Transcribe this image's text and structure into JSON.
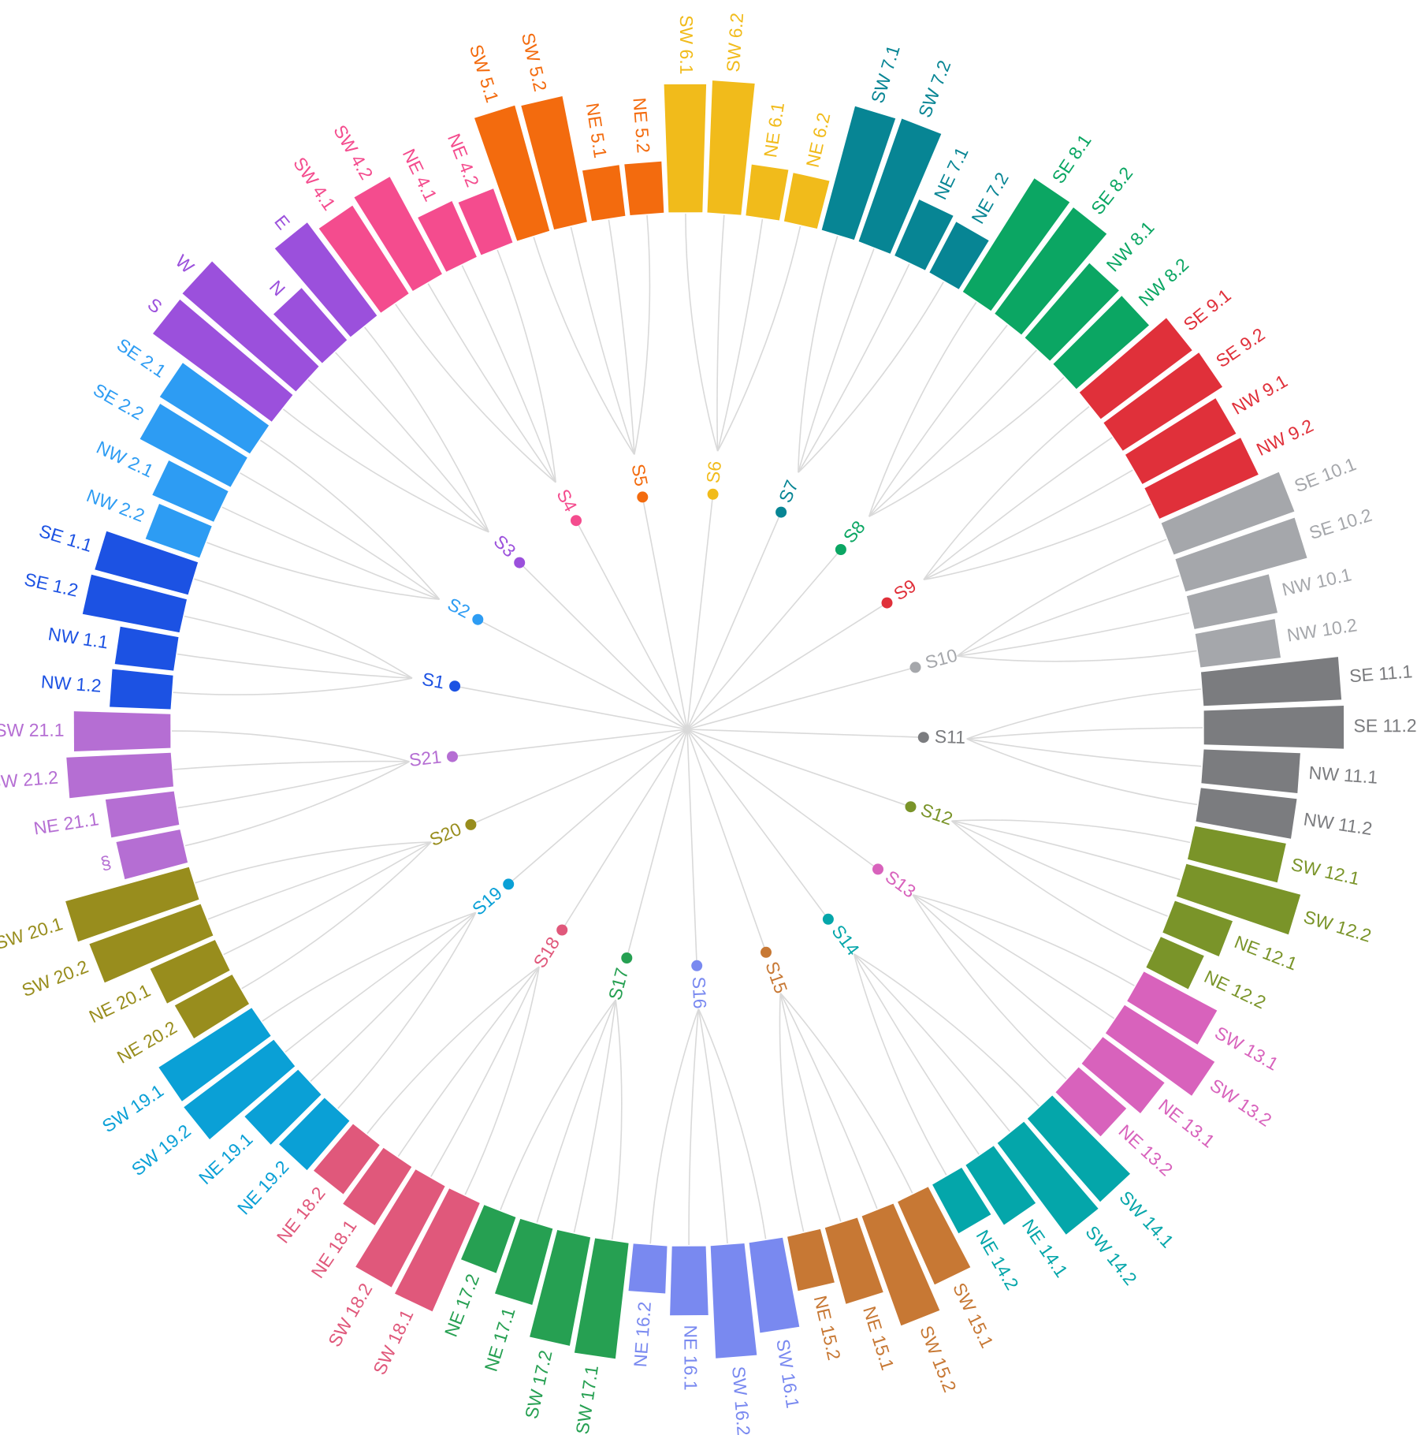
{
  "chart_data": {
    "type": "radial-bar-dendrogram",
    "title": "",
    "groups": [
      {
        "name": "S1",
        "color": "#1c52e3",
        "bars": [
          {
            "label": "NW 1.2",
            "value": 0.62
          },
          {
            "label": "NW 1.1",
            "value": 0.6
          },
          {
            "label": "SE 1.2",
            "value": 1.0
          },
          {
            "label": "SE 1.1",
            "value": 0.98
          }
        ]
      },
      {
        "name": "S2",
        "color": "#2d9cf3",
        "bars": [
          {
            "label": "NW 2.2",
            "value": 0.58
          },
          {
            "label": "NW 2.1",
            "value": 0.68
          },
          {
            "label": "SE 2.2",
            "value": 1.04
          },
          {
            "label": "SE 2.1",
            "value": 1.08
          }
        ]
      },
      {
        "name": "S3",
        "color": "#9b50dc",
        "bars": [
          {
            "label": "S",
            "value": 1.5
          },
          {
            "label": "W",
            "value": 1.52
          },
          {
            "label": "N",
            "value": 0.7
          },
          {
            "label": "E",
            "value": 1.18
          }
        ]
      },
      {
        "name": "S4",
        "color": "#f44c8e",
        "bars": [
          {
            "label": "SW 4.1",
            "value": 1.06
          },
          {
            "label": "SW 4.2",
            "value": 1.12
          },
          {
            "label": "NE 4.1",
            "value": 0.62
          },
          {
            "label": "NE 4.2",
            "value": 0.58
          }
        ]
      },
      {
        "name": "S5",
        "color": "#f36b0e",
        "bars": [
          {
            "label": "SW 5.1",
            "value": 1.32
          },
          {
            "label": "SW 5.2",
            "value": 1.3
          },
          {
            "label": "NE 5.1",
            "value": 0.52
          },
          {
            "label": "NE 5.2",
            "value": 0.52
          }
        ]
      },
      {
        "name": "S6",
        "color": "#f1bb1b",
        "bars": [
          {
            "label": "SW 6.1",
            "value": 1.3
          },
          {
            "label": "SW 6.2",
            "value": 1.34
          },
          {
            "label": "NE 6.1",
            "value": 0.52
          },
          {
            "label": "NE 6.2",
            "value": 0.5
          }
        ]
      },
      {
        "name": "S7",
        "color": "#078594",
        "bars": [
          {
            "label": "SW 7.1",
            "value": 1.3
          },
          {
            "label": "SW 7.2",
            "value": 1.32
          },
          {
            "label": "NE 7.1",
            "value": 0.62
          },
          {
            "label": "NE 7.2",
            "value": 0.58
          }
        ]
      },
      {
        "name": "S8",
        "color": "#0ba663",
        "bars": [
          {
            "label": "SE 8.1",
            "value": 1.36
          },
          {
            "label": "SE 8.2",
            "value": 1.34
          },
          {
            "label": "NW 8.1",
            "value": 1.0
          },
          {
            "label": "NW 8.2",
            "value": 0.98
          }
        ]
      },
      {
        "name": "S9",
        "color": "#e0303a",
        "bars": [
          {
            "label": "SE 9.1",
            "value": 1.16
          },
          {
            "label": "SE 9.2",
            "value": 1.2
          },
          {
            "label": "NW 9.1",
            "value": 1.08
          },
          {
            "label": "NW 9.2",
            "value": 1.1
          }
        ]
      },
      {
        "name": "S10",
        "color": "#a5a7ab",
        "bars": [
          {
            "label": "SE 10.1",
            "value": 1.3
          },
          {
            "label": "SE 10.2",
            "value": 1.28
          },
          {
            "label": "NW 10.1",
            "value": 0.86
          },
          {
            "label": "NW 10.2",
            "value": 0.82
          }
        ]
      },
      {
        "name": "S11",
        "color": "#7b7c7f",
        "bars": [
          {
            "label": "SE 11.1",
            "value": 1.4
          },
          {
            "label": "SE 11.2",
            "value": 1.42
          },
          {
            "label": "NW 11.1",
            "value": 0.98
          },
          {
            "label": "NW 11.2",
            "value": 0.98
          }
        ]
      },
      {
        "name": "S12",
        "color": "#7a9429",
        "bars": [
          {
            "label": "SW 12.1",
            "value": 0.94
          },
          {
            "label": "SW 12.2",
            "value": 1.2
          },
          {
            "label": "NE 12.1",
            "value": 0.62
          },
          {
            "label": "NE 12.2",
            "value": 0.48
          }
        ]
      },
      {
        "name": "S13",
        "color": "#d862bc",
        "bars": [
          {
            "label": "SW 13.1",
            "value": 0.84
          },
          {
            "label": "SW 13.2",
            "value": 1.08
          },
          {
            "label": "NE 13.1",
            "value": 0.78
          },
          {
            "label": "NE 13.2",
            "value": 0.64
          }
        ]
      },
      {
        "name": "S14",
        "color": "#04a6aa",
        "bars": [
          {
            "label": "SW 14.1",
            "value": 1.12
          },
          {
            "label": "SW 14.2",
            "value": 1.16
          },
          {
            "label": "NE 14.1",
            "value": 0.72
          },
          {
            "label": "NE 14.2",
            "value": 0.56
          }
        ]
      },
      {
        "name": "S15",
        "color": "#c77834",
        "bars": [
          {
            "label": "SW 15.1",
            "value": 0.92
          },
          {
            "label": "SW 15.2",
            "value": 1.18
          },
          {
            "label": "NE 15.1",
            "value": 0.8
          },
          {
            "label": "NE 15.2",
            "value": 0.56
          }
        ]
      },
      {
        "name": "S16",
        "color": "#7989f0",
        "bars": [
          {
            "label": "SW 16.1",
            "value": 0.92
          },
          {
            "label": "SW 16.2",
            "value": 1.14
          },
          {
            "label": "NE 16.1",
            "value": 0.7
          },
          {
            "label": "NE 16.2",
            "value": 0.48
          }
        ]
      },
      {
        "name": "S17",
        "color": "#26a052",
        "bars": [
          {
            "label": "SW 17.1",
            "value": 1.18
          },
          {
            "label": "SW 17.2",
            "value": 1.12
          },
          {
            "label": "NE 17.1",
            "value": 0.8
          },
          {
            "label": "NE 17.2",
            "value": 0.6
          }
        ]
      },
      {
        "name": "S18",
        "color": "#e0587b",
        "bars": [
          {
            "label": "SW 18.1",
            "value": 1.2
          },
          {
            "label": "SW 18.2",
            "value": 1.16
          },
          {
            "label": "NE 18.1",
            "value": 0.7
          },
          {
            "label": "NE 18.2",
            "value": 0.62
          }
        ]
      },
      {
        "name": "S19",
        "color": "#0aa0d6",
        "bars": [
          {
            "label": "NE 19.2",
            "value": 0.66
          },
          {
            "label": "NE 19.1",
            "value": 0.72
          },
          {
            "label": "SW 19.2",
            "value": 1.14
          },
          {
            "label": "SW 19.1",
            "value": 1.12
          }
        ]
      },
      {
        "name": "S20",
        "color": "#988d1d",
        "bars": [
          {
            "label": "NE 20.2",
            "value": 0.66
          },
          {
            "label": "NE 20.1",
            "value": 0.72
          },
          {
            "label": "SW 20.2",
            "value": 1.2
          },
          {
            "label": "SW 20.1",
            "value": 1.3
          }
        ]
      },
      {
        "name": "S21",
        "color": "#b56ed3",
        "bars": [
          {
            "label": "§",
            "value": 0.66
          },
          {
            "label": "NE 21.1",
            "value": 0.7
          },
          {
            "label": "SW 21.2",
            "value": 1.06
          },
          {
            "label": "SW 21.1",
            "value": 0.98
          }
        ]
      }
    ]
  }
}
